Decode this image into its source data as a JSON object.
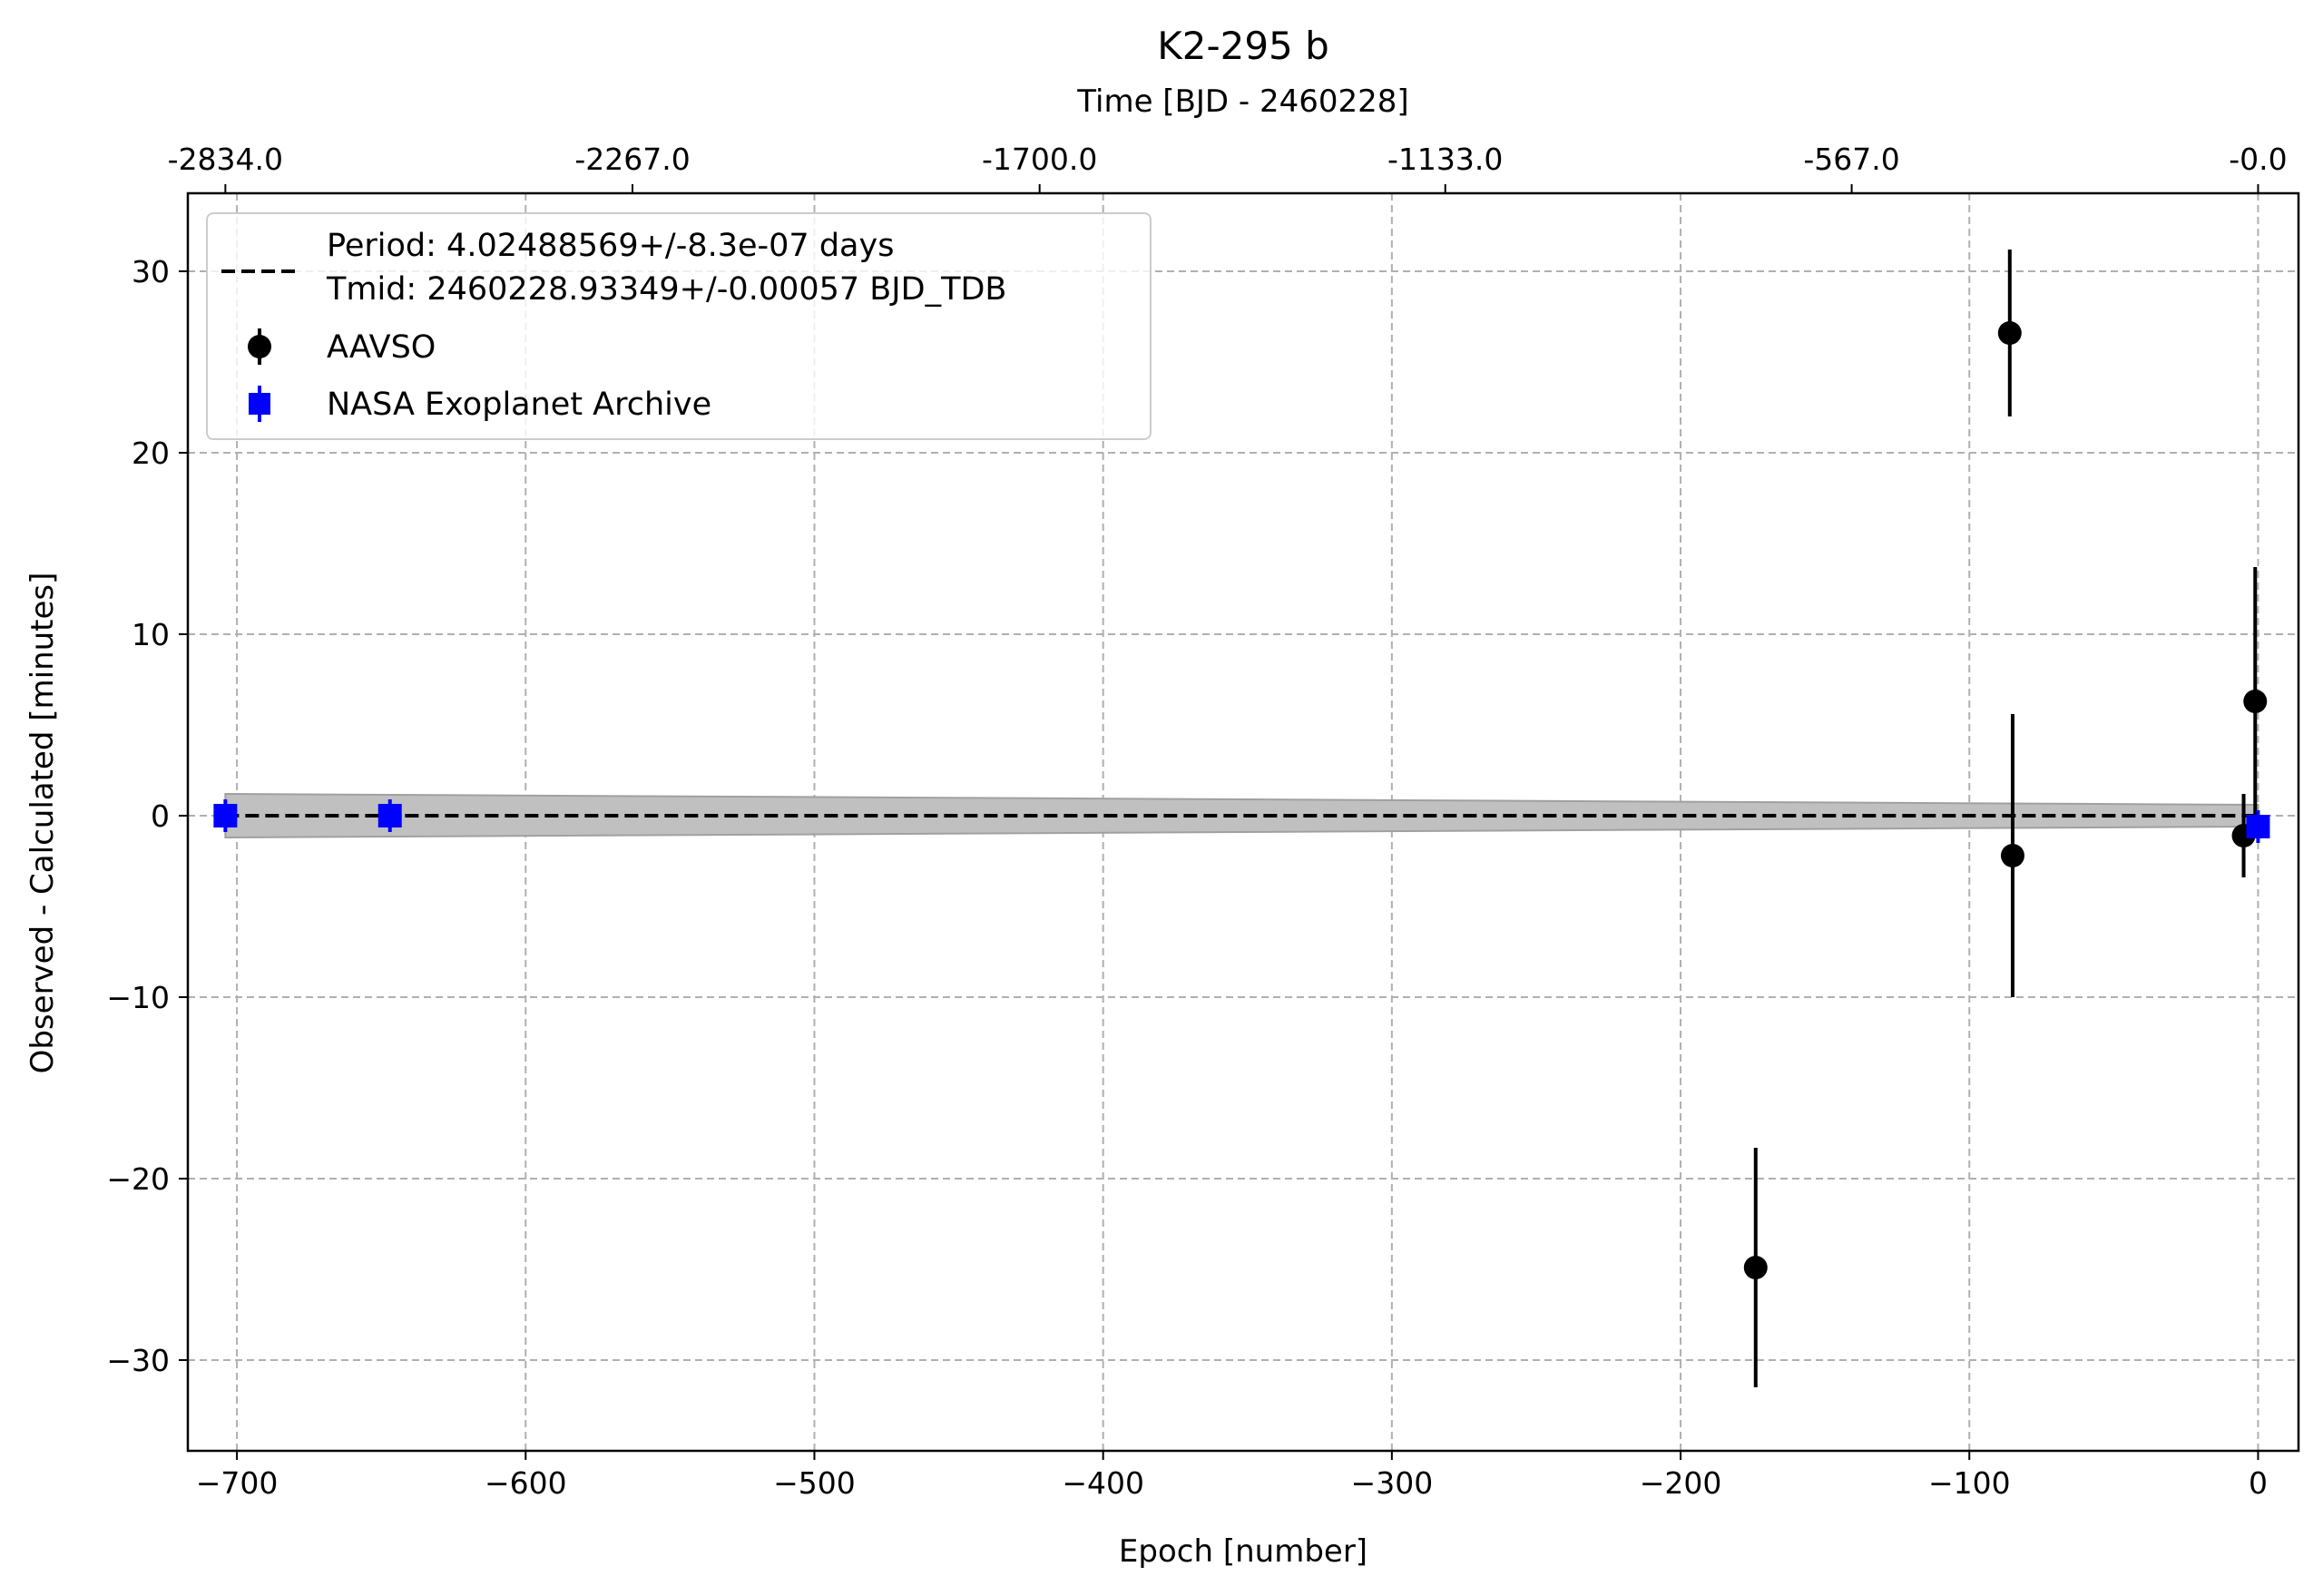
{
  "chart_data": {
    "type": "scatter",
    "title": "K2-295 b",
    "xlabel": "Epoch [number]",
    "ylabel": "Observed - Calculated [minutes]",
    "top_xlabel": "Time [BJD - 2460228]",
    "xlim": [
      -717,
      14
    ],
    "ylim": [
      -35,
      34.3
    ],
    "grid": true,
    "x_ticks": [
      -700,
      -600,
      -500,
      -400,
      -300,
      -200,
      -100,
      0
    ],
    "x_tick_labels": [
      "−700",
      "−600",
      "−500",
      "−400",
      "−300",
      "−200",
      "−100",
      "0"
    ],
    "y_ticks": [
      30,
      20,
      10,
      0,
      -10,
      -20,
      -30
    ],
    "y_tick_labels": [
      "30",
      "20",
      "10",
      "0",
      "−10",
      "−20",
      "−30"
    ],
    "top_ticks": [
      -704,
      -563,
      -422,
      -281.5,
      -140.75,
      0
    ],
    "top_tick_labels": [
      "-2834.0",
      "-2267.0",
      "-1700.0",
      "-1133.0",
      "-567.0",
      "-0.0"
    ],
    "fit": {
      "label_line1": "Period: 4.02488569+/-8.3e-07 days",
      "label_line2": "Tmid: 2460228.93349+/-0.00057 BJD_TDB",
      "x_range": [
        -704,
        0
      ],
      "y": 0,
      "band_start": 1.2,
      "band_end": 0.6,
      "color": "#000000",
      "band_color": "#c0c0c0"
    },
    "legend_position": "upper left",
    "series": [
      {
        "name": "AAVSO",
        "marker": "circle",
        "color": "#000000",
        "points": [
          {
            "x": -174,
            "y": -24.9,
            "err": 6.6
          },
          {
            "x": -86,
            "y": 26.6,
            "err": 4.6
          },
          {
            "x": -85,
            "y": -2.2,
            "err": 7.8
          },
          {
            "x": -5,
            "y": -1.1,
            "err": 2.3
          },
          {
            "x": -1,
            "y": 6.3,
            "err": 7.4
          }
        ]
      },
      {
        "name": "NASA Exoplanet Archive",
        "marker": "square",
        "color": "#0000ff",
        "points": [
          {
            "x": -704,
            "y": 0.0,
            "err": 0.9
          },
          {
            "x": -647,
            "y": 0.0,
            "err": 0.9
          },
          {
            "x": 0,
            "y": -0.6,
            "err": 0.9
          }
        ]
      }
    ]
  }
}
